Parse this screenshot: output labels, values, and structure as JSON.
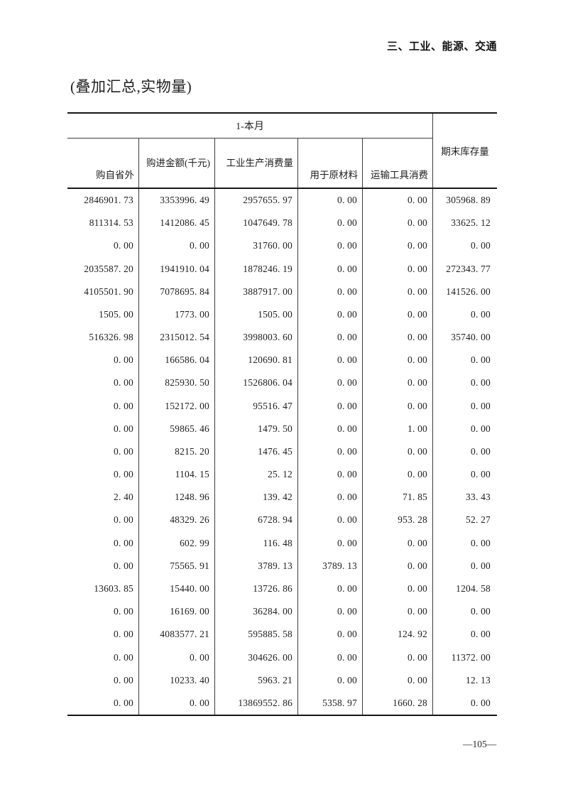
{
  "page": {
    "section_header": "三、工业、能源、交通",
    "title": "(叠加汇总,实物量)",
    "page_number": "—105—"
  },
  "colors": {
    "ink": "#1d1d1d",
    "rule_heavy": "#161616",
    "rule_light": "#3c3c3c",
    "background": "#ffffff"
  },
  "table": {
    "group_header": "1-本月",
    "columns": [
      "购自省外",
      "购进金额(千元)",
      "工业生产消费量",
      "用于原材料",
      "运输工具消费",
      "期末库存量"
    ],
    "rows": [
      [
        "2846901.73",
        "3353996.49",
        "2957655.97",
        "0.00",
        "0.00",
        "305968.89"
      ],
      [
        "811314.53",
        "1412086.45",
        "1047649.78",
        "0.00",
        "0.00",
        "33625.12"
      ],
      [
        "0.00",
        "0.00",
        "31760.00",
        "0.00",
        "0.00",
        "0.00"
      ],
      [
        "2035587.20",
        "1941910.04",
        "1878246.19",
        "0.00",
        "0.00",
        "272343.77"
      ],
      [
        "4105501.90",
        "7078695.84",
        "3887917.00",
        "0.00",
        "0.00",
        "141526.00"
      ],
      [
        "1505.00",
        "1773.00",
        "1505.00",
        "0.00",
        "0.00",
        "0.00"
      ],
      [
        "516326.98",
        "2315012.54",
        "3998003.60",
        "0.00",
        "0.00",
        "35740.00"
      ],
      [
        "0.00",
        "166586.04",
        "120690.81",
        "0.00",
        "0.00",
        "0.00"
      ],
      [
        "0.00",
        "825930.50",
        "1526806.04",
        "0.00",
        "0.00",
        "0.00"
      ],
      [
        "0.00",
        "152172.00",
        "95516.47",
        "0.00",
        "0.00",
        "0.00"
      ],
      [
        "0.00",
        "59865.46",
        "1479.50",
        "0.00",
        "1.00",
        "0.00"
      ],
      [
        "0.00",
        "8215.20",
        "1476.45",
        "0.00",
        "0.00",
        "0.00"
      ],
      [
        "0.00",
        "1104.15",
        "25.12",
        "0.00",
        "0.00",
        "0.00"
      ],
      [
        "2.40",
        "1248.96",
        "139.42",
        "0.00",
        "71.85",
        "33.43"
      ],
      [
        "0.00",
        "48329.26",
        "6728.94",
        "0.00",
        "953.28",
        "52.27"
      ],
      [
        "0.00",
        "602.99",
        "116.48",
        "0.00",
        "0.00",
        "0.00"
      ],
      [
        "0.00",
        "75565.91",
        "3789.13",
        "3789.13",
        "0.00",
        "0.00"
      ],
      [
        "13603.85",
        "15440.00",
        "13726.86",
        "0.00",
        "0.00",
        "1204.58"
      ],
      [
        "0.00",
        "16169.00",
        "36284.00",
        "0.00",
        "0.00",
        "0.00"
      ],
      [
        "0.00",
        "4083577.21",
        "595885.58",
        "0.00",
        "124.92",
        "0.00"
      ],
      [
        "0.00",
        "0.00",
        "304626.00",
        "0.00",
        "0.00",
        "11372.00"
      ],
      [
        "0.00",
        "10233.40",
        "5963.21",
        "0.00",
        "0.00",
        "12.13"
      ],
      [
        "0.00",
        "0.00",
        "13869552.86",
        "5358.97",
        "1660.28",
        "0.00"
      ]
    ]
  }
}
